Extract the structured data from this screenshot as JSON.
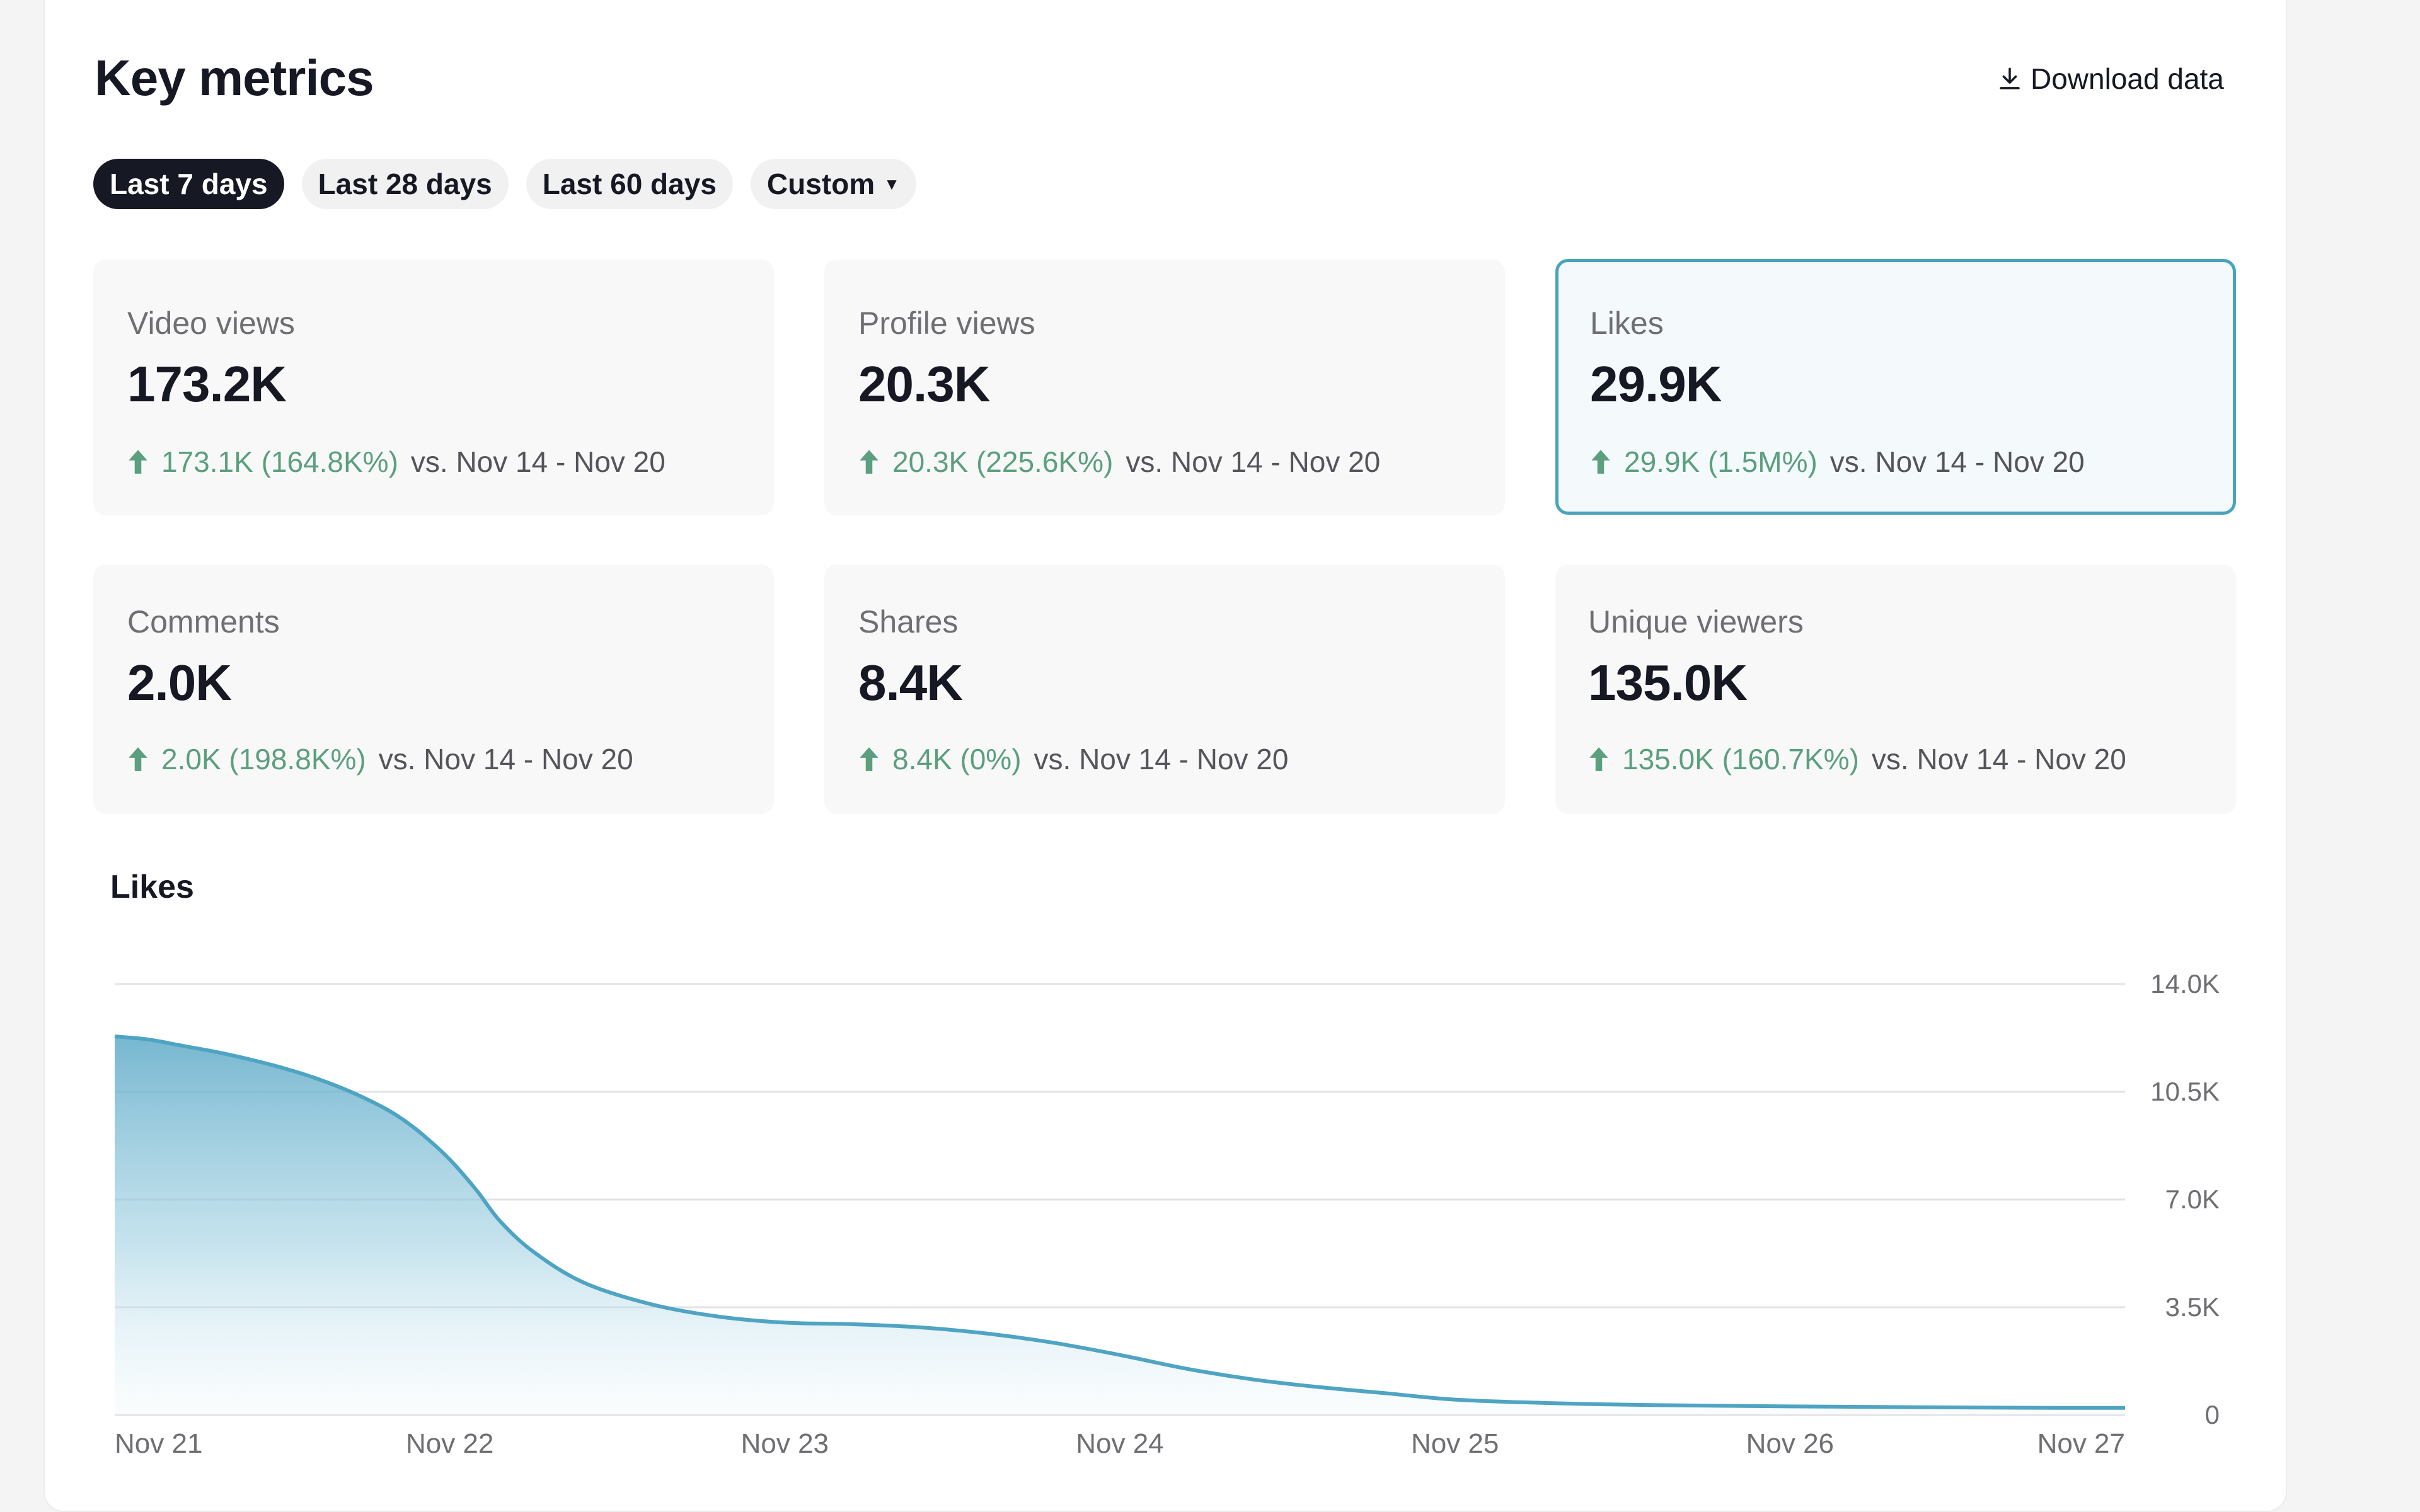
{
  "header": {
    "title": "Key metrics",
    "download_label": "Download data"
  },
  "tabs": [
    {
      "label": "Last 7 days",
      "active": true
    },
    {
      "label": "Last 28 days",
      "active": false
    },
    {
      "label": "Last 60 days",
      "active": false
    },
    {
      "label": "Custom",
      "active": false
    }
  ],
  "cards": [
    {
      "label": "Video views",
      "value": "173.2K",
      "change": "173.1K (164.8K%)",
      "vs": "vs.  Nov 14 - Nov 20",
      "trend": "up",
      "selected": false
    },
    {
      "label": "Profile views",
      "value": "20.3K",
      "change": "20.3K (225.6K%)",
      "vs": "vs.  Nov 14 - Nov 20",
      "trend": "up",
      "selected": false
    },
    {
      "label": "Likes",
      "value": "29.9K",
      "change": "29.9K (1.5M%)",
      "vs": "vs.  Nov 14 - Nov 20",
      "trend": "up",
      "selected": true
    },
    {
      "label": "Comments",
      "value": "2.0K",
      "change": "2.0K (198.8K%)",
      "vs": "vs.  Nov 14 - Nov 20",
      "trend": "up",
      "selected": false
    },
    {
      "label": "Shares",
      "value": "8.4K",
      "change": "8.4K (0%)",
      "vs": "vs.  Nov 14 - Nov 20",
      "trend": "up",
      "selected": false
    },
    {
      "label": "Unique viewers",
      "value": "135.0K",
      "change": "135.0K (160.7K%)",
      "vs": "vs.  Nov 14 - Nov 20",
      "trend": "up",
      "selected": false
    }
  ],
  "colors": {
    "accent": "#49a3bd",
    "positive": "#5b9f7f",
    "tab_active": "#161823",
    "line": "#4ea4c2"
  },
  "icons": {
    "download": "download-icon",
    "trend_up": "arrow-up-icon",
    "dropdown": "caret-down-icon"
  },
  "chart_data": {
    "type": "area",
    "title": "Likes",
    "x": [
      0,
      0.1,
      0.2,
      0.3,
      0.4,
      0.5,
      0.6,
      0.7,
      0.8,
      0.86,
      0.92,
      1.0,
      1.08,
      1.15,
      1.25,
      1.4,
      1.6,
      1.8,
      2.0,
      2.2,
      2.4,
      2.6,
      2.8,
      3.0,
      3.2,
      3.4,
      3.6,
      3.8,
      4.0,
      4.3,
      4.6,
      5.0,
      5.4,
      5.8,
      6.0
    ],
    "values": [
      12300,
      12200,
      12000,
      11800,
      11560,
      11280,
      10940,
      10520,
      10000,
      9600,
      9100,
      8300,
      7300,
      6300,
      5300,
      4300,
      3600,
      3200,
      3000,
      2950,
      2850,
      2650,
      2350,
      1950,
      1500,
      1150,
      900,
      700,
      500,
      380,
      320,
      280,
      250,
      230,
      230
    ],
    "categories": [
      "Nov 21",
      "Nov 22",
      "Nov 23",
      "Nov 24",
      "Nov 25",
      "Nov 26",
      "Nov 27"
    ],
    "yticks": [
      "0",
      "3.5K",
      "7.0K",
      "10.5K",
      "14.0K"
    ],
    "ylim": [
      0,
      14000
    ],
    "grid": true,
    "y_axis_side": "right"
  }
}
